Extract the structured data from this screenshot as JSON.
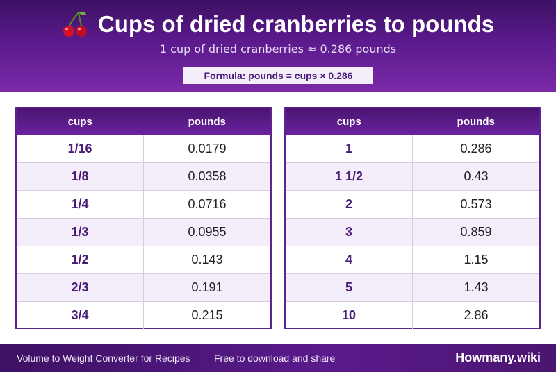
{
  "header": {
    "icon": "cherry-icon",
    "title": "Cups of dried cranberries to pounds",
    "subtitle": "1 cup of dried cranberries ≈ 0.286 pounds",
    "formula": "Formula: pounds = cups × 0.286"
  },
  "tables": {
    "left": {
      "headers": [
        "cups",
        "pounds"
      ],
      "rows": [
        [
          "1/16",
          "0.0179"
        ],
        [
          "1/8",
          "0.0358"
        ],
        [
          "1/4",
          "0.0716"
        ],
        [
          "1/3",
          "0.0955"
        ],
        [
          "1/2",
          "0.143"
        ],
        [
          "2/3",
          "0.191"
        ],
        [
          "3/4",
          "0.215"
        ]
      ]
    },
    "right": {
      "headers": [
        "cups",
        "pounds"
      ],
      "rows": [
        [
          "1",
          "0.286"
        ],
        [
          "1 1/2",
          "0.43"
        ],
        [
          "2",
          "0.573"
        ],
        [
          "3",
          "0.859"
        ],
        [
          "4",
          "1.15"
        ],
        [
          "5",
          "1.43"
        ],
        [
          "10",
          "2.86"
        ]
      ]
    }
  },
  "footer": {
    "left_text": "Volume to Weight Converter for Recipes",
    "middle_text": "Free to download and share",
    "brand": "Howmany.wiki"
  },
  "colors": {
    "header_bg": "#5a1a8c",
    "accent_text": "#4a1b78",
    "alt_row": "#f3eefa"
  }
}
